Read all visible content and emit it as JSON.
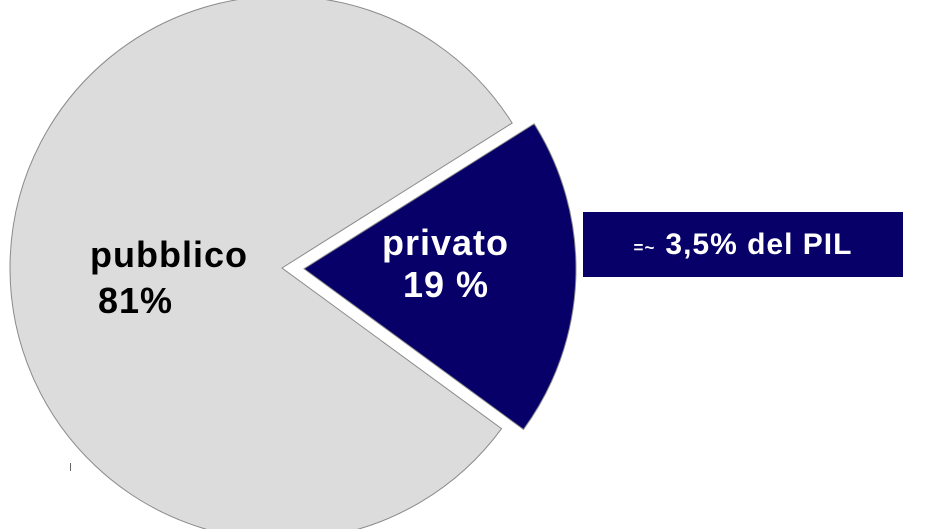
{
  "chart_data": {
    "type": "pie",
    "slices": [
      {
        "label": "pubblico",
        "value_label": "81%",
        "value": 81,
        "color": "#dcdcdc",
        "exploded": false
      },
      {
        "label": "privato",
        "value_label": "19 %",
        "value": 19,
        "color": "#070068",
        "exploded": true
      }
    ]
  },
  "callout": {
    "prefix": "=~",
    "text": "3,5% del PIL",
    "background": "#070068"
  }
}
